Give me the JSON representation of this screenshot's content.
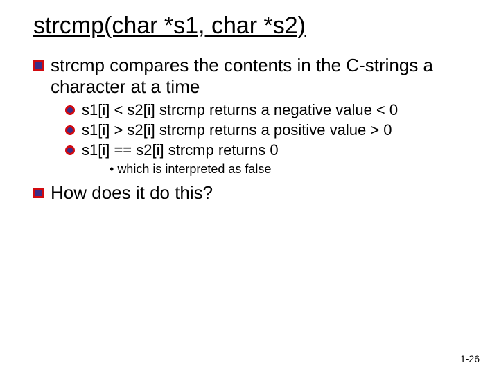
{
  "title": "strcmp(char *s1, char *s2)",
  "point1": {
    "prefix": "strcmp",
    "rest": " compares the contents in the C-strings a character at a time"
  },
  "sub": {
    "a": "s1[i]  < s2[i] strcmp returns a negative value < 0",
    "b": "s1[i]  > s2[i] strcmp returns a positive value > 0",
    "c": "s1[i] == s2[i] strcmp returns 0"
  },
  "subsub": "which is interpreted as false",
  "point2": {
    "prefix": "How",
    "rest": " does it do this?"
  },
  "page_number": "1-26",
  "colors": {
    "bullet_border": "#d10a10",
    "bullet_fill": "#3b2e86",
    "text": "#000000",
    "background": "#ffffff"
  },
  "fonts": {
    "body_family": "Comic Sans MS",
    "title_size_pt": 34,
    "lvl1_size_pt": 26,
    "lvl2_size_pt": 22,
    "lvl3_size_pt": 18,
    "pagenum_size_pt": 14
  }
}
